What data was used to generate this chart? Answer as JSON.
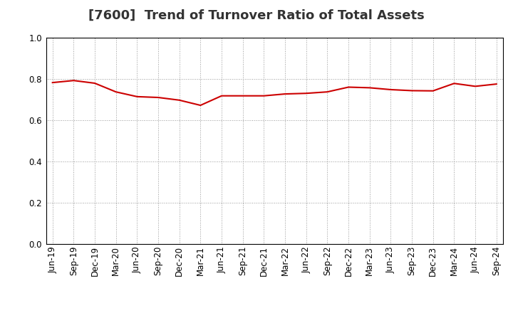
{
  "title": "[7600]  Trend of Turnover Ratio of Total Assets",
  "x_labels": [
    "Jun-19",
    "Sep-19",
    "Dec-19",
    "Mar-20",
    "Jun-20",
    "Sep-20",
    "Dec-20",
    "Mar-21",
    "Jun-21",
    "Sep-21",
    "Dec-21",
    "Mar-22",
    "Jun-22",
    "Sep-22",
    "Dec-22",
    "Mar-23",
    "Jun-23",
    "Sep-23",
    "Dec-23",
    "Mar-24",
    "Jun-24",
    "Sep-24"
  ],
  "y_values": [
    0.782,
    0.792,
    0.779,
    0.737,
    0.714,
    0.71,
    0.697,
    0.672,
    0.718,
    0.718,
    0.718,
    0.727,
    0.73,
    0.737,
    0.76,
    0.757,
    0.748,
    0.743,
    0.742,
    0.778,
    0.764,
    0.775
  ],
  "line_color": "#cc0000",
  "line_width": 1.5,
  "ylim": [
    0.0,
    1.0
  ],
  "yticks": [
    0.0,
    0.2,
    0.4,
    0.6,
    0.8,
    1.0
  ],
  "background_color": "#ffffff",
  "grid_color": "#999999",
  "title_fontsize": 13,
  "tick_fontsize": 8.5
}
